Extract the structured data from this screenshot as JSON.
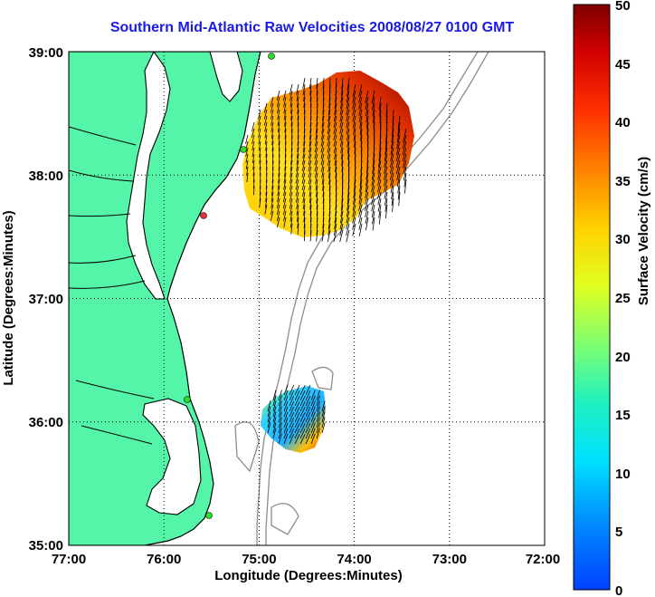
{
  "title": "Southern Mid-Atlantic Raw Velocities 2008/08/27 0100 GMT",
  "map": {
    "xlabel": "Longitude (Degrees:Minutes)",
    "ylabel": "Latitude (Degrees:Minutes)",
    "x_ticks": [
      "77:00",
      "76:00",
      "75:00",
      "74:00",
      "73:00",
      "72:00"
    ],
    "y_ticks": [
      "39:00",
      "38:00",
      "37:00",
      "36:00",
      "35:00"
    ],
    "lon_range": [
      -77,
      -72
    ],
    "lat_range": [
      35,
      39
    ],
    "grid": "dotted",
    "land_color": "#55f5a9",
    "coast_color": "#000000",
    "bathymetry_color": "#8c8c8c",
    "station_color": "#2adf2a",
    "station_highlight_color": "#e63333"
  },
  "colorbar": {
    "label": "Surface Velocity (cm/s)",
    "ticks": [
      "0",
      "5",
      "10",
      "15",
      "20",
      "25",
      "30",
      "35",
      "40",
      "45",
      "50"
    ],
    "range": [
      0,
      50
    ],
    "colormap": "jet"
  }
}
